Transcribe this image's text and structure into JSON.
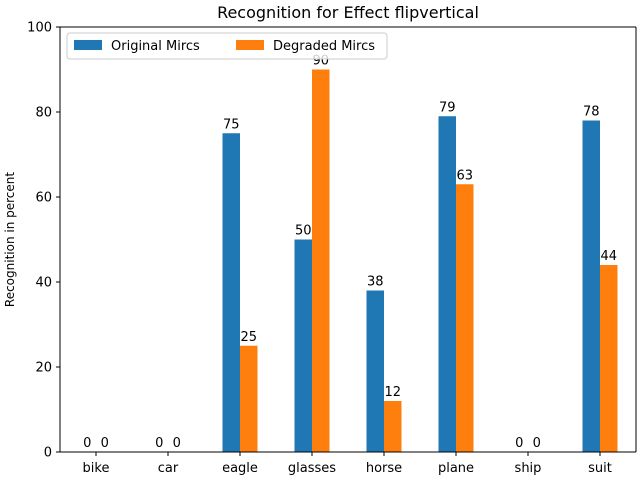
{
  "chart_data": {
    "type": "bar",
    "title": "Recognition for Effect flipvertical",
    "xlabel": "",
    "ylabel": "Recognition in percent",
    "categories": [
      "bike",
      "car",
      "eagle",
      "glasses",
      "horse",
      "plane",
      "ship",
      "suit"
    ],
    "series": [
      {
        "name": "Original Mircs",
        "color": "#1f77b4",
        "values": [
          0,
          0,
          75,
          50,
          38,
          79,
          0,
          78
        ]
      },
      {
        "name": "Degraded Mircs",
        "color": "#ff7f0e",
        "values": [
          0,
          0,
          25,
          90,
          12,
          63,
          0,
          44
        ]
      }
    ],
    "ylim": [
      0,
      100
    ],
    "yticks": [
      0,
      20,
      40,
      60,
      80,
      100
    ],
    "legend": "top-left",
    "grid": false
  }
}
